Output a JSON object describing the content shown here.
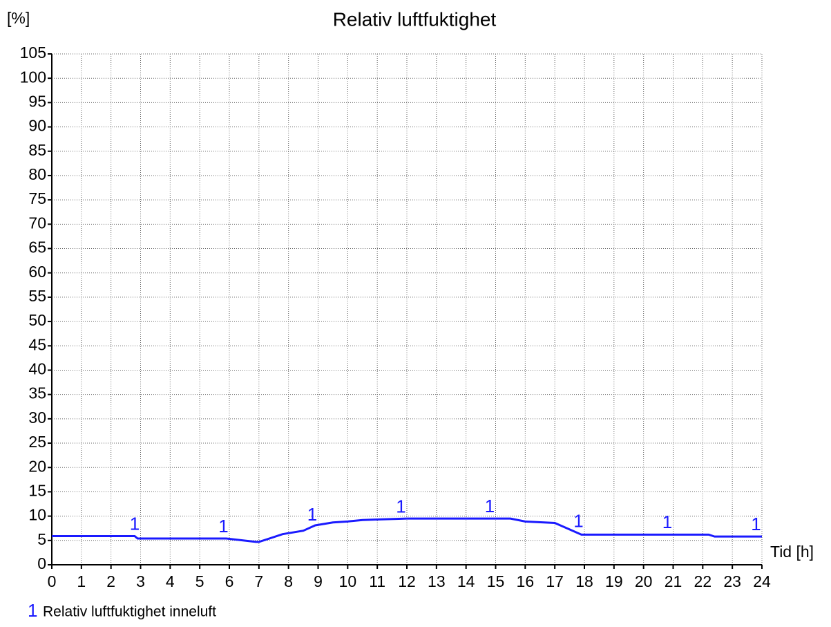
{
  "chart_data": {
    "type": "line",
    "title": "Relativ luftfuktighet",
    "ylabel": "[%]",
    "xlabel": "Tid [h]",
    "xlim": [
      0,
      24
    ],
    "xticks": [
      0,
      1,
      2,
      3,
      4,
      5,
      6,
      7,
      8,
      9,
      10,
      11,
      12,
      13,
      14,
      15,
      16,
      17,
      18,
      19,
      20,
      21,
      22,
      23,
      24
    ],
    "ylim": [
      0,
      105
    ],
    "yticks": [
      0,
      5,
      10,
      15,
      20,
      25,
      30,
      35,
      40,
      45,
      50,
      55,
      60,
      65,
      70,
      75,
      80,
      85,
      90,
      95,
      100,
      105
    ],
    "grid": true,
    "series": [
      {
        "id": "1",
        "name": "Relativ luftfuktighet inneluft",
        "color": "#1a1aff",
        "x": [
          0,
          2.8,
          2.9,
          5.9,
          6.9,
          7,
          7.8,
          8.5,
          8.9,
          9.5,
          10,
          10.5,
          11,
          12,
          15.5,
          16,
          17,
          17.9,
          22.2,
          22.4,
          24
        ],
        "values": [
          5.9,
          5.9,
          5.4,
          5.4,
          4.7,
          4.7,
          6.3,
          7,
          8.1,
          8.7,
          8.9,
          9.2,
          9.3,
          9.5,
          9.5,
          8.9,
          8.6,
          6.2,
          6.2,
          5.8,
          5.8
        ],
        "marker_x": [
          2.8,
          5.8,
          8.8,
          11.8,
          14.8,
          17.8,
          20.8,
          23.8
        ]
      }
    ]
  }
}
